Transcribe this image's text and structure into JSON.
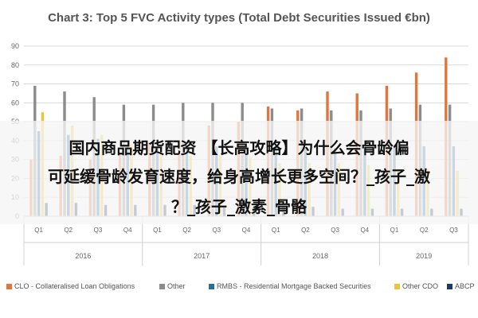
{
  "chart_data": {
    "type": "bar",
    "title": "Chart 3: Top 5 FVC Activity types (Total Debt Securities Issued €bn)",
    "ylim": [
      0,
      90
    ],
    "yticks": [
      0,
      10,
      20,
      30,
      40,
      50,
      60,
      70,
      80,
      90
    ],
    "grid": true,
    "legend_position": "bottom",
    "categories": [
      "Q1",
      "Q2",
      "Q3",
      "Q4",
      "Q1",
      "Q2",
      "Q3",
      "Q4",
      "Q1",
      "Q2",
      "Q3",
      "Q4",
      "Q1",
      "Q2",
      "Q3"
    ],
    "years": [
      {
        "label": "2016",
        "span": 4
      },
      {
        "label": "2017",
        "span": 4
      },
      {
        "label": "2018",
        "span": 4
      },
      {
        "label": "2019",
        "span": 3
      }
    ],
    "series": [
      {
        "name": "CLO - Collateralised Loan Obligations",
        "color": "#e2743c",
        "values": [
          30,
          32,
          30,
          33,
          39,
          40,
          48,
          50,
          58,
          56,
          66,
          65,
          69,
          76,
          84
        ]
      },
      {
        "name": "Other",
        "color": "#8c8c8c",
        "values": [
          69,
          66,
          63,
          59,
          59,
          60,
          60,
          60,
          57,
          57,
          56,
          56,
          57,
          59,
          59
        ]
      },
      {
        "name": "RMBS - Residential Mortgage Backed Securities",
        "color": "#2c6f96",
        "values": [
          45,
          43,
          41,
          38,
          37,
          37,
          37,
          37,
          36,
          36,
          36,
          36,
          36,
          37,
          37
        ]
      },
      {
        "name": "Other CDO",
        "color": "#efc23c",
        "values": [
          55,
          48,
          43,
          38,
          34,
          32,
          32,
          31,
          28,
          28,
          28,
          27,
          25,
          25,
          24
        ]
      },
      {
        "name": "ABCP",
        "color": "#1a3a6b",
        "values": [
          7,
          7,
          6,
          6,
          6,
          6,
          5,
          5,
          5,
          5,
          4,
          4,
          4,
          4,
          4
        ]
      }
    ]
  },
  "overlay": {
    "line1": "国内商品期货配资 【长高攻略】为什么会骨龄偏",
    "line2": "可延缓骨龄发育速度，给身高增长更多空间？_孩子_激",
    "line3": "？_孩子_激素_骨骼"
  }
}
